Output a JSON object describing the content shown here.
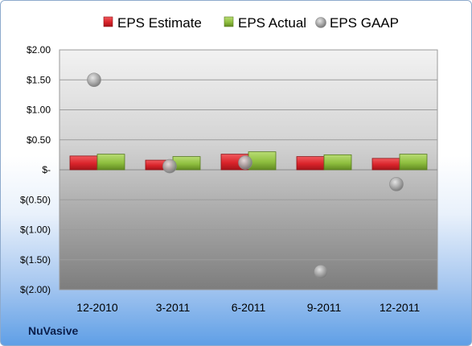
{
  "company": "NuVasive",
  "colors": {
    "estimate": "#d9232a",
    "actual": "#8fbf3f",
    "gaap": "#b0b0b0"
  },
  "chart_data": {
    "type": "bar",
    "categories": [
      "12-2010",
      "3-2011",
      "6-2011",
      "9-2011",
      "12-2011"
    ],
    "series": [
      {
        "name": "EPS Estimate",
        "type": "bar",
        "values": [
          0.23,
          0.16,
          0.26,
          0.22,
          0.19
        ]
      },
      {
        "name": "EPS Actual",
        "type": "bar",
        "values": [
          0.26,
          0.22,
          0.3,
          0.25,
          0.26
        ]
      },
      {
        "name": "EPS GAAP",
        "type": "scatter",
        "values": [
          1.5,
          0.06,
          0.12,
          -1.7,
          -0.24
        ]
      }
    ],
    "ylim": [
      -2.0,
      2.0
    ],
    "yticks": [
      2.0,
      1.5,
      1.0,
      0.5,
      0,
      -0.5,
      -1.0,
      -1.5,
      -2.0
    ],
    "ytick_labels": [
      "$2.00",
      "$1.50",
      "$1.00",
      "$0.50",
      "$-",
      "$(0.50)",
      "$(1.00)",
      "$(1.50)",
      "$(2.00)"
    ],
    "grid": true,
    "legend": "top"
  }
}
